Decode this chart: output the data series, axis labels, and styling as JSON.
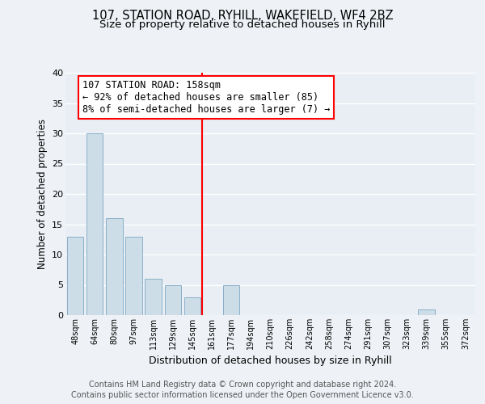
{
  "title_line1": "107, STATION ROAD, RYHILL, WAKEFIELD, WF4 2BZ",
  "title_line2": "Size of property relative to detached houses in Ryhill",
  "xlabel": "Distribution of detached houses by size in Ryhill",
  "ylabel": "Number of detached properties",
  "bin_labels": [
    "48sqm",
    "64sqm",
    "80sqm",
    "97sqm",
    "113sqm",
    "129sqm",
    "145sqm",
    "161sqm",
    "177sqm",
    "194sqm",
    "210sqm",
    "226sqm",
    "242sqm",
    "258sqm",
    "274sqm",
    "291sqm",
    "307sqm",
    "323sqm",
    "339sqm",
    "355sqm",
    "372sqm"
  ],
  "bar_heights": [
    13,
    30,
    16,
    13,
    6,
    5,
    3,
    0,
    5,
    0,
    0,
    0,
    0,
    0,
    0,
    0,
    0,
    0,
    1,
    0,
    0
  ],
  "bar_color": "#ccdde8",
  "bar_edge_color": "#8aafc8",
  "annotation_box_text": "107 STATION ROAD: 158sqm\n← 92% of detached houses are smaller (85)\n8% of semi-detached houses are larger (7) →",
  "annotation_box_color": "white",
  "annotation_box_edge_color": "red",
  "vline_color": "red",
  "vline_x": 6.5,
  "ylim": [
    0,
    40
  ],
  "yticks": [
    0,
    5,
    10,
    15,
    20,
    25,
    30,
    35,
    40
  ],
  "footer_line1": "Contains HM Land Registry data © Crown copyright and database right 2024.",
  "footer_line2": "Contains public sector information licensed under the Open Government Licence v3.0.",
  "bg_color": "#eef2f6",
  "plot_bg_color": "#e8eef4",
  "grid_color": "white",
  "title_fontsize": 10.5,
  "subtitle_fontsize": 9.5,
  "label_fontsize": 8.5,
  "tick_fontsize": 7,
  "footer_fontsize": 7.0,
  "annot_fontsize": 8.5
}
